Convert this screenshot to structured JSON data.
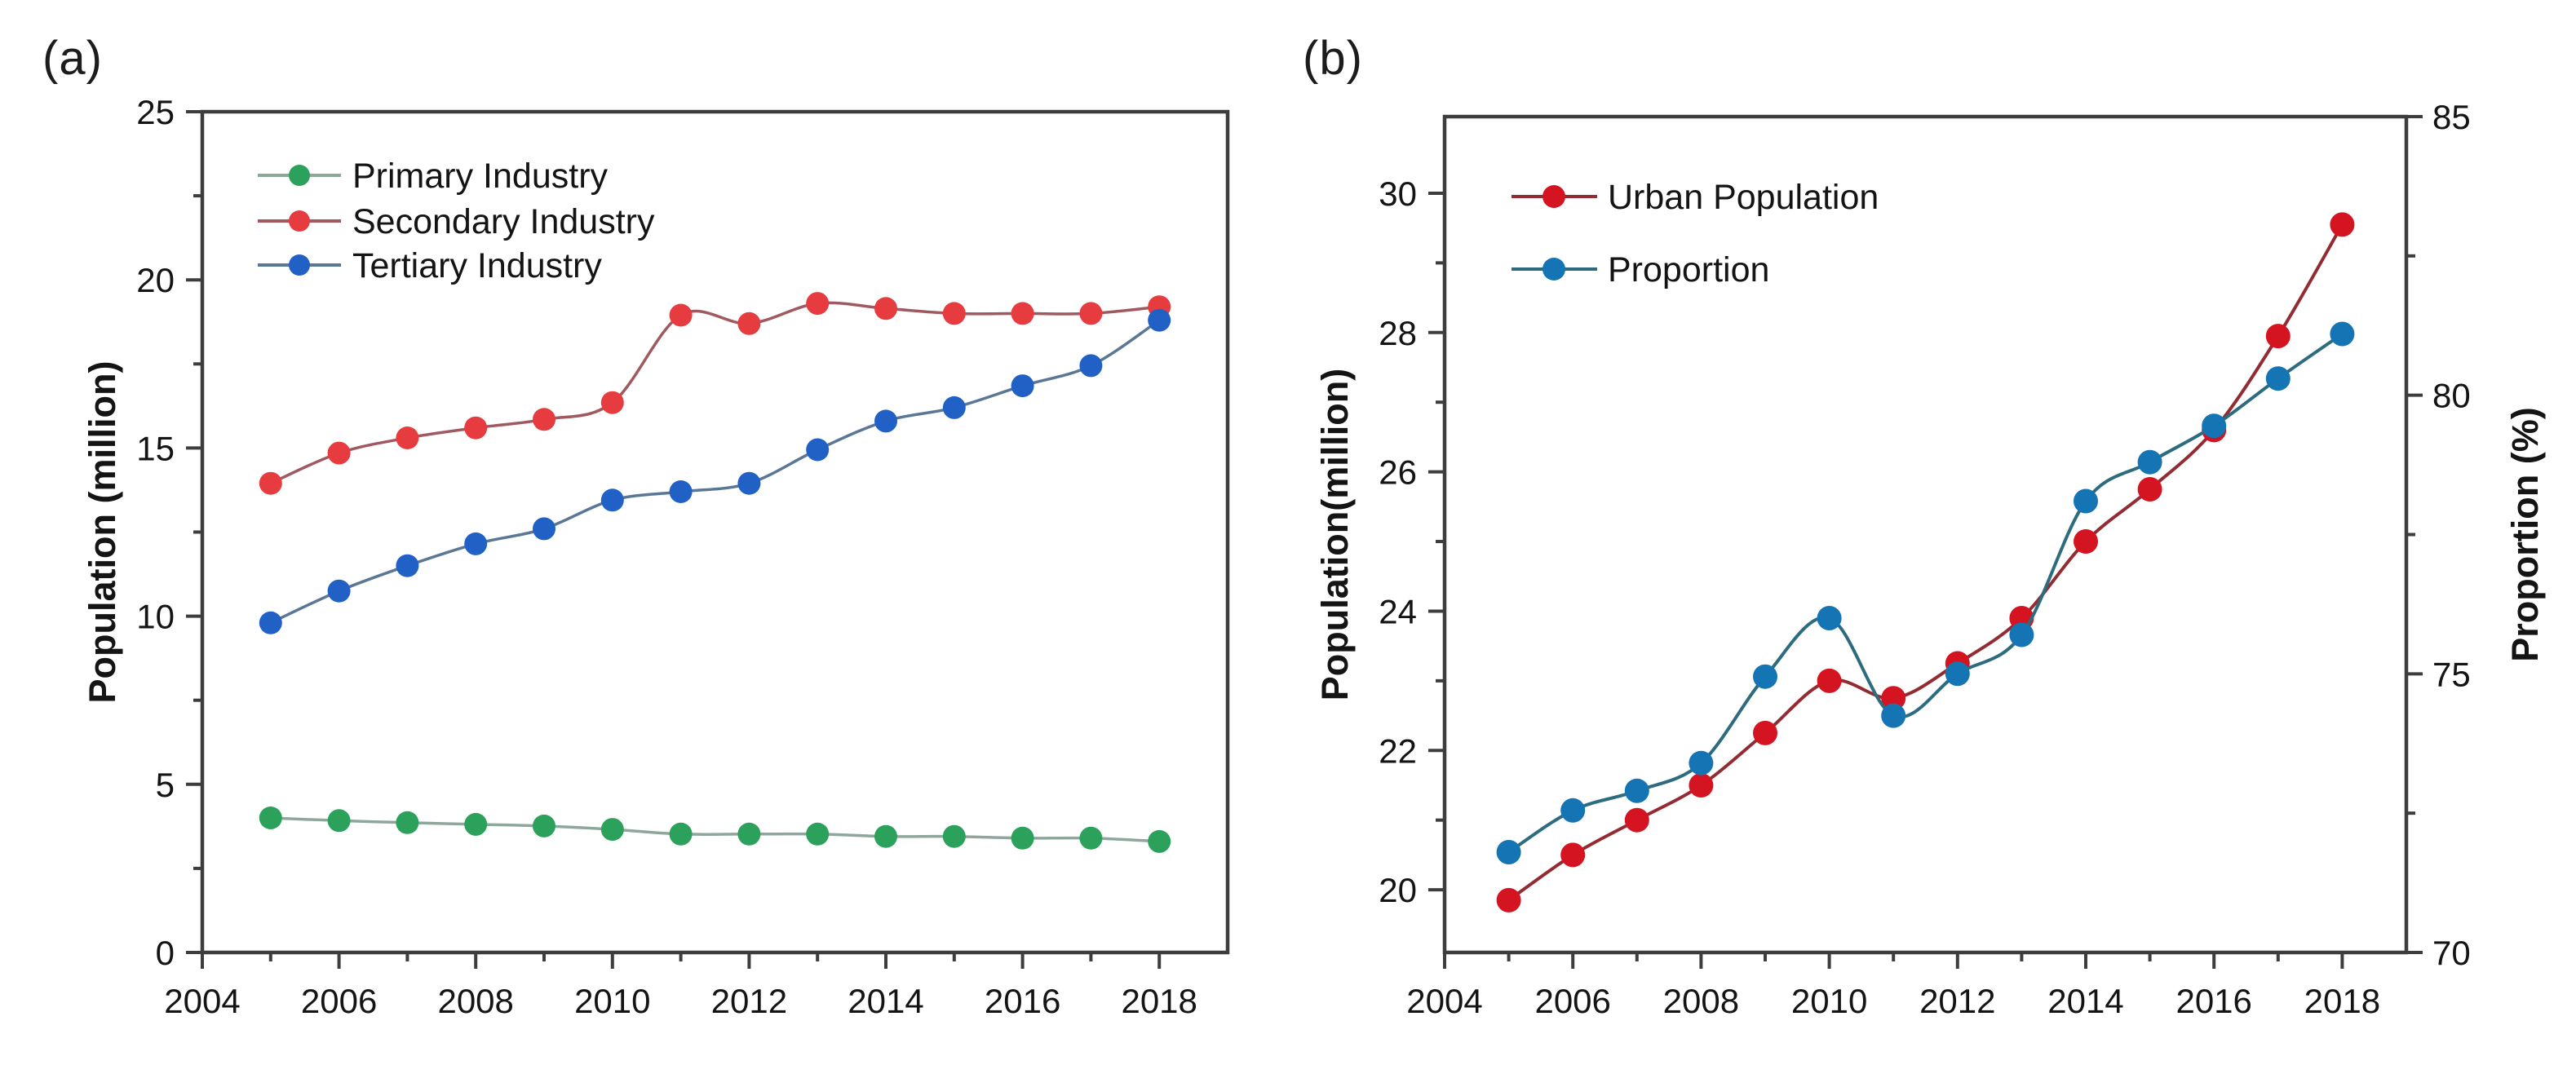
{
  "figure": {
    "background": "#ffffff",
    "panel_labels": [
      "(a)",
      "(b)"
    ]
  },
  "styles": {
    "frame_color": "#3d3d3d",
    "tick_color": "#3d3d3d",
    "text_color": "#141414"
  },
  "chart_data": [
    {
      "id": "a",
      "panel_label": "(a)",
      "type": "line",
      "x": [
        2005,
        2006,
        2007,
        2008,
        2009,
        2010,
        2011,
        2012,
        2013,
        2014,
        2015,
        2016,
        2017,
        2018
      ],
      "xlim": [
        2004,
        2019
      ],
      "xticks": [
        2004,
        2006,
        2008,
        2010,
        2012,
        2014,
        2016,
        2018
      ],
      "xticks_minor": [
        2005,
        2007,
        2009,
        2011,
        2013,
        2015,
        2017
      ],
      "left_axis": {
        "label": "Population (million)",
        "lim": [
          0,
          25
        ],
        "ticks": [
          0,
          5,
          10,
          15,
          20,
          25
        ],
        "minor_ticks": [
          2.5,
          7.5,
          12.5,
          17.5,
          22.5
        ]
      },
      "right_axis": null,
      "legend_position": "top-left",
      "series": [
        {
          "name": "Primary Industry",
          "axis": "left",
          "marker_color": "#2ba15b",
          "line_color": "#8fa69b",
          "smooth": true,
          "values": [
            4.0,
            3.92,
            3.86,
            3.81,
            3.76,
            3.66,
            3.52,
            3.52,
            3.52,
            3.45,
            3.45,
            3.4,
            3.4,
            3.3
          ]
        },
        {
          "name": "Secondary Industry",
          "axis": "left",
          "marker_color": "#e63c40",
          "line_color": "#a05a5f",
          "smooth": true,
          "values": [
            13.95,
            14.85,
            15.3,
            15.6,
            15.85,
            16.35,
            18.95,
            18.7,
            19.3,
            19.15,
            19.0,
            19.0,
            19.0,
            19.2
          ]
        },
        {
          "name": "Tertiary Industry",
          "axis": "left",
          "marker_color": "#2161c6",
          "line_color": "#5a7795",
          "smooth": true,
          "values": [
            9.8,
            10.75,
            11.5,
            12.15,
            12.6,
            13.45,
            13.7,
            13.95,
            14.95,
            15.8,
            16.2,
            16.85,
            17.45,
            18.8
          ]
        }
      ]
    },
    {
      "id": "b",
      "panel_label": "(b)",
      "type": "line-dual-axis",
      "x": [
        2005,
        2006,
        2007,
        2008,
        2009,
        2010,
        2011,
        2012,
        2013,
        2014,
        2015,
        2016,
        2017,
        2018
      ],
      "xlim": [
        2004,
        2019
      ],
      "xticks": [
        2004,
        2006,
        2008,
        2010,
        2012,
        2014,
        2016,
        2018
      ],
      "xticks_minor": [
        2005,
        2007,
        2009,
        2011,
        2013,
        2015,
        2017
      ],
      "left_axis": {
        "label": "Population(million)",
        "lim": [
          19.1,
          31.1
        ],
        "ticks": [
          20,
          22,
          24,
          26,
          28,
          30
        ],
        "minor_ticks": [
          21,
          23,
          25,
          27,
          29
        ]
      },
      "right_axis": {
        "label": "Proportion (%)",
        "lim": [
          70,
          85
        ],
        "ticks": [
          70,
          75,
          80,
          85
        ],
        "minor_ticks": [
          72.5,
          77.5,
          82.5
        ]
      },
      "legend_position": "top-left",
      "series": [
        {
          "name": "Urban Population",
          "axis": "left",
          "marker_color": "#d41420",
          "line_color": "#932b33",
          "smooth": true,
          "values": [
            19.85,
            20.5,
            21.0,
            21.5,
            22.25,
            23.0,
            22.75,
            23.25,
            23.9,
            25.0,
            25.75,
            26.6,
            27.95,
            29.55
          ]
        },
        {
          "name": "Proportion",
          "axis": "right",
          "marker_color": "#1474b4",
          "line_color": "#2d6b7e",
          "smooth": true,
          "values": [
            71.8,
            72.55,
            72.9,
            73.4,
            74.95,
            76.0,
            74.25,
            75.0,
            75.7,
            78.1,
            78.8,
            79.45,
            80.3,
            81.1
          ]
        }
      ]
    }
  ]
}
